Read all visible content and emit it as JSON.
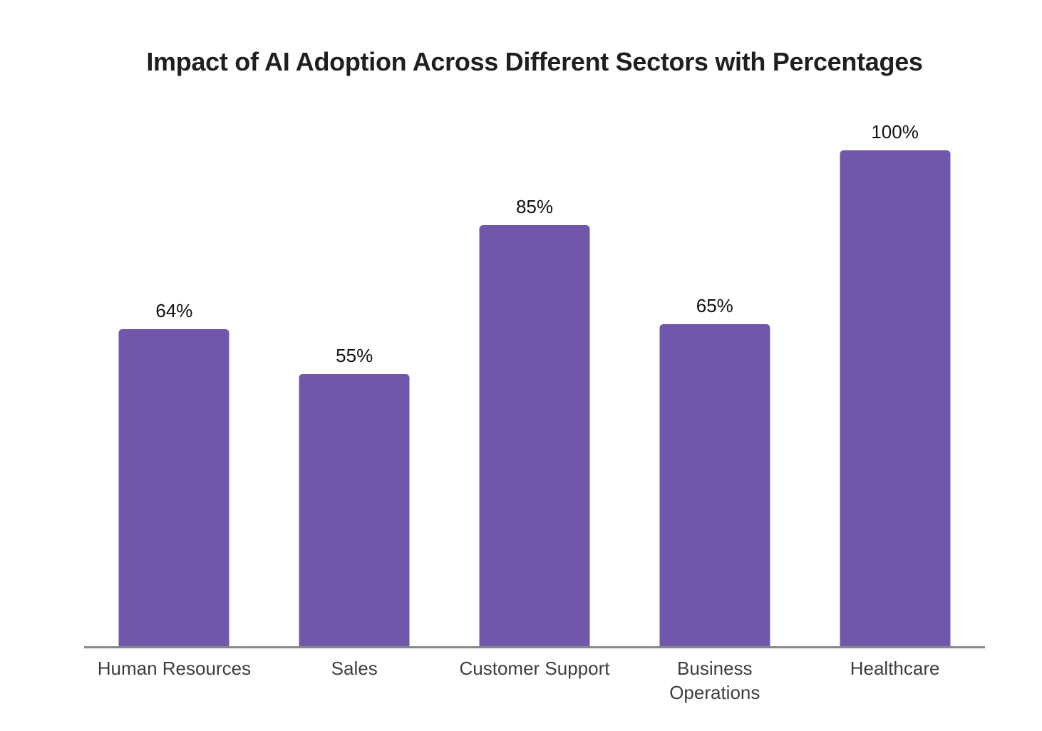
{
  "chart_data": {
    "type": "bar",
    "title": "Impact of AI Adoption Across Different Sectors with Percentages",
    "categories": [
      "Human Resources",
      "Sales",
      "Customer Support",
      "Business Operations",
      "Healthcare"
    ],
    "values": [
      64,
      55,
      85,
      65,
      100
    ],
    "value_labels": [
      "64%",
      "55%",
      "85%",
      "65%",
      "100%"
    ],
    "xlabel": "",
    "ylabel": "",
    "ylim": [
      0,
      100
    ],
    "grid": false,
    "legend": false,
    "layout": {
      "orientation": "vertical",
      "value_labels_position": "above-bars",
      "x_axis_line": true,
      "y_axis_ticks": false
    },
    "colors": {
      "bar": "#7157AB",
      "title": "#1f1f1f",
      "value_label": "#111111",
      "category_label": "#3d3d3d",
      "axis_line": "#888888",
      "background": "#ffffff"
    }
  }
}
